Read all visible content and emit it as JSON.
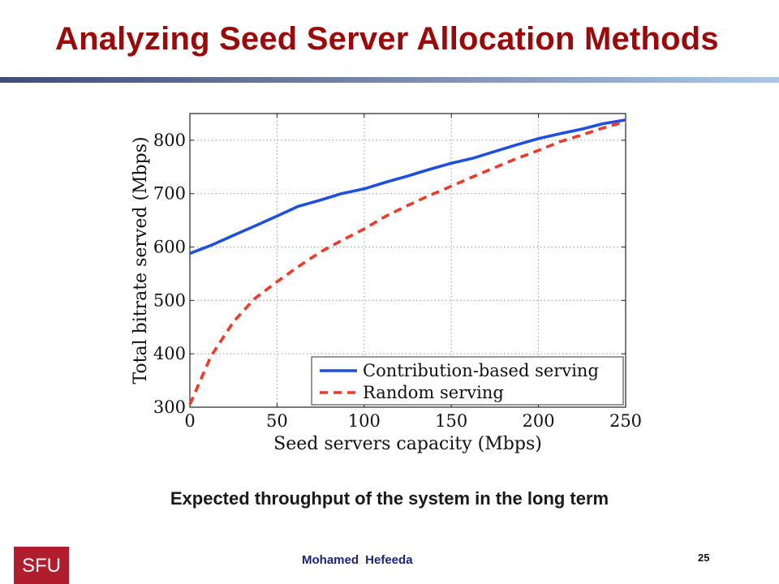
{
  "slide": {
    "title": "Analyzing Seed Server Allocation Methods",
    "caption": "Expected throughput of the system in the long term",
    "author": "Mohamed  Hefeeda",
    "page_number": "25",
    "logo_text": "SFU",
    "colors": {
      "title": "#9b0a0a",
      "logo": "#b01e2d",
      "author": "#1a237e"
    }
  },
  "chart_data": {
    "type": "line",
    "title": "",
    "xlabel": "Seed servers capacity (Mbps)",
    "ylabel": "Total bitrate served (Mbps)",
    "xlim": [
      0,
      250
    ],
    "ylim": [
      300,
      850
    ],
    "xticks": [
      0,
      50,
      100,
      150,
      200,
      250
    ],
    "yticks": [
      300,
      400,
      500,
      600,
      700,
      800
    ],
    "grid": true,
    "legend_position": "bottom-right",
    "series": [
      {
        "name": "Contribution-based serving",
        "color": "#1f4fe0",
        "style": "solid",
        "x": [
          0,
          12,
          25,
          37,
          50,
          62,
          75,
          87,
          100,
          112,
          125,
          137,
          150,
          162,
          175,
          187,
          200,
          212,
          225,
          237,
          250
        ],
        "y": [
          588,
          603,
          622,
          639,
          658,
          676,
          688,
          700,
          709,
          721,
          733,
          745,
          757,
          766,
          779,
          791,
          803,
          812,
          821,
          831,
          838
        ]
      },
      {
        "name": "Random serving",
        "color": "#f0392b",
        "style": "dashed",
        "x": [
          0,
          12,
          25,
          37,
          50,
          62,
          75,
          87,
          100,
          112,
          125,
          137,
          150,
          162,
          175,
          187,
          200,
          212,
          225,
          237,
          250
        ],
        "y": [
          305,
          395,
          460,
          503,
          535,
          563,
          591,
          612,
          634,
          657,
          678,
          696,
          714,
          731,
          749,
          765,
          781,
          797,
          810,
          823,
          835
        ]
      }
    ]
  }
}
